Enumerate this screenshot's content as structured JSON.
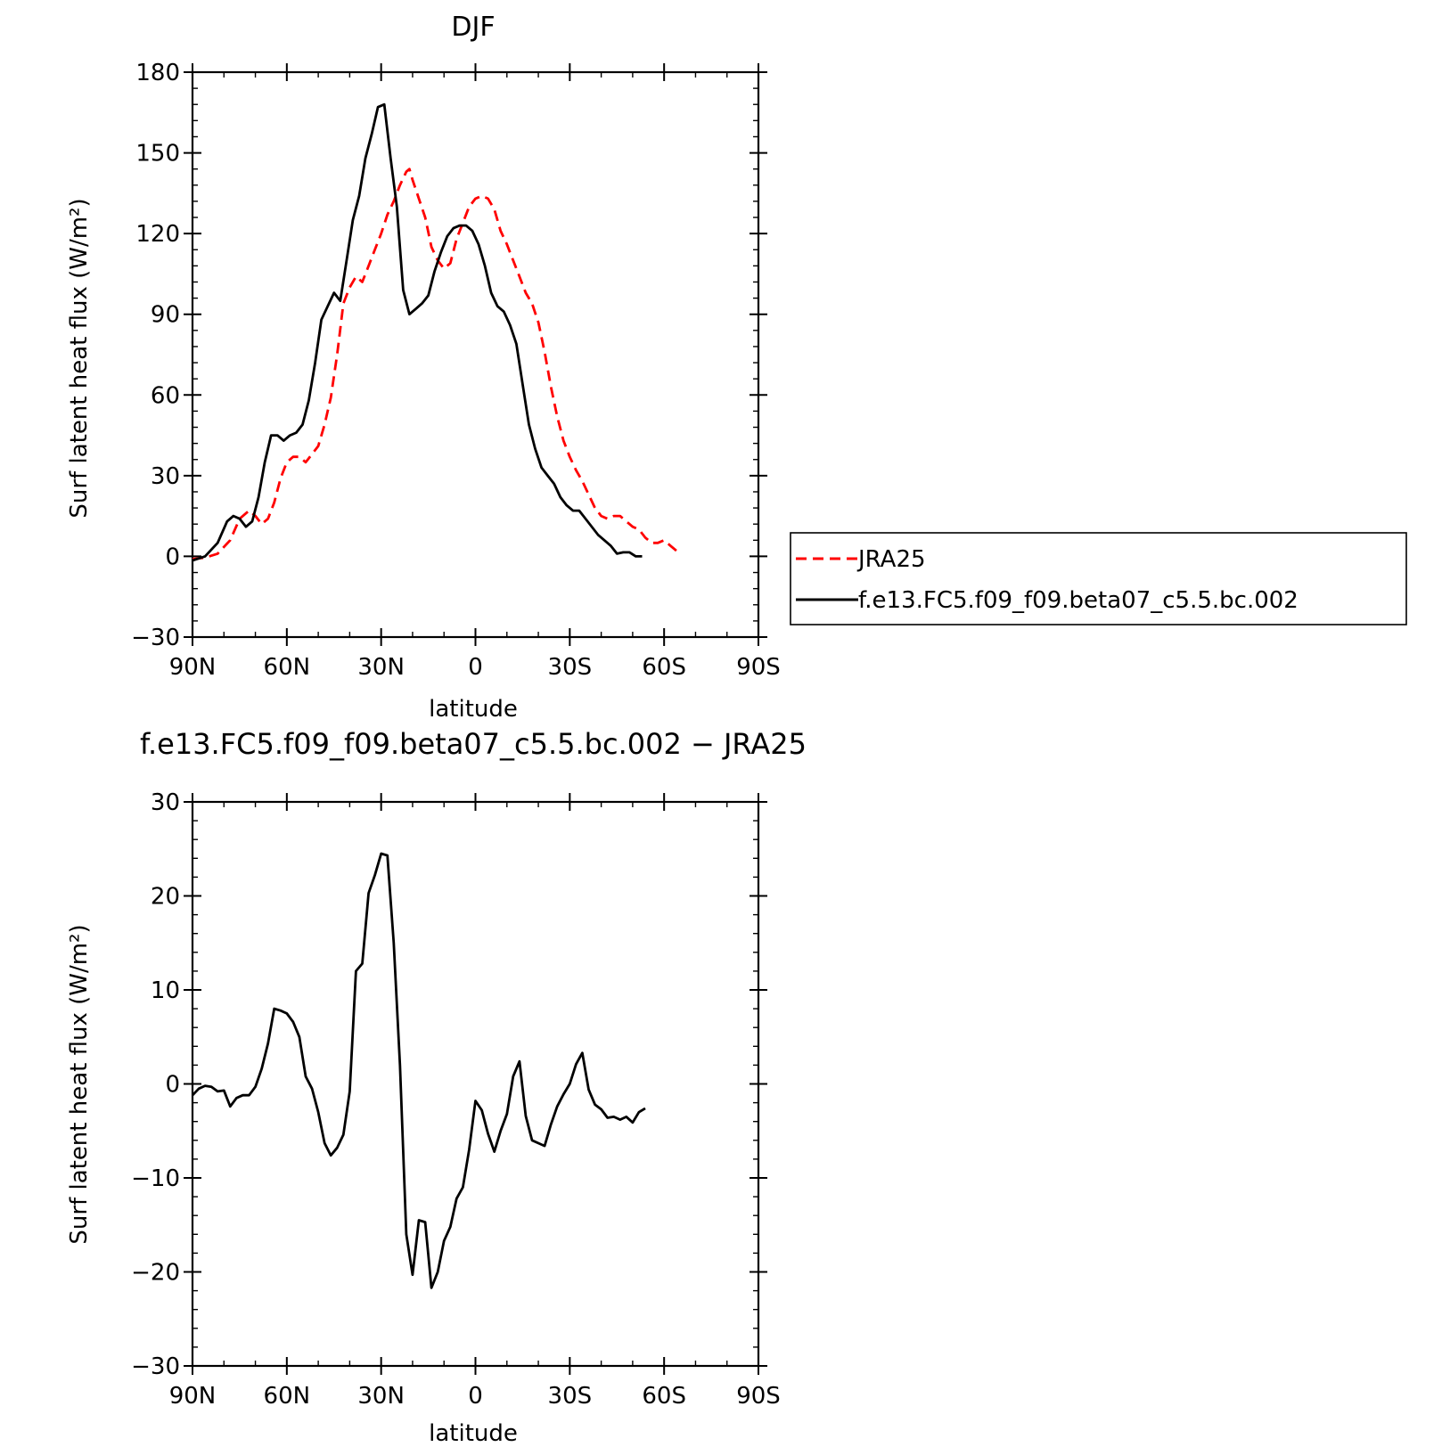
{
  "chart_data": [
    {
      "type": "line",
      "title": "DJF",
      "xlabel": "latitude",
      "ylabel": "Surf latent heat flux (W/m²)",
      "xlim": [
        90,
        -90
      ],
      "ylim": [
        -30,
        180
      ],
      "x_ticks": [
        {
          "value": 90,
          "label": "90N"
        },
        {
          "value": 60,
          "label": "60N"
        },
        {
          "value": 30,
          "label": "30N"
        },
        {
          "value": 0,
          "label": "0"
        },
        {
          "value": -30,
          "label": "30S"
        },
        {
          "value": -60,
          "label": "60S"
        },
        {
          "value": -90,
          "label": "90S"
        }
      ],
      "y_ticks": [
        -30,
        0,
        30,
        60,
        90,
        120,
        150,
        180
      ],
      "legend_position": "right, outside plot",
      "series": [
        {
          "name": "JRA25",
          "color": "#ff0000",
          "dash": "dashed",
          "points": [
            [
              90,
              -1
            ],
            [
              86,
              -0.5
            ],
            [
              82,
              1
            ],
            [
              78,
              6
            ],
            [
              75,
              14
            ],
            [
              72,
              17
            ],
            [
              70,
              15
            ],
            [
              68,
              12
            ],
            [
              66,
              14
            ],
            [
              64,
              20
            ],
            [
              62,
              29
            ],
            [
              60,
              35
            ],
            [
              58,
              37
            ],
            [
              56,
              37
            ],
            [
              54,
              35
            ],
            [
              52,
              38
            ],
            [
              50,
              41
            ],
            [
              48,
              49
            ],
            [
              46,
              59
            ],
            [
              44,
              75
            ],
            [
              42,
              94
            ],
            [
              40,
              100
            ],
            [
              38,
              104
            ],
            [
              36,
              102
            ],
            [
              34,
              108
            ],
            [
              32,
              114
            ],
            [
              30,
              120
            ],
            [
              28,
              127
            ],
            [
              26,
              132
            ],
            [
              24,
              138
            ],
            [
              22,
              143
            ],
            [
              21,
              144
            ],
            [
              20,
              140
            ],
            [
              18,
              133
            ],
            [
              16,
              126
            ],
            [
              14,
              115
            ],
            [
              12,
              110
            ],
            [
              10,
              107
            ],
            [
              8,
              109
            ],
            [
              6,
              118
            ],
            [
              4,
              124
            ],
            [
              2,
              130
            ],
            [
              0,
              133
            ],
            [
              -2,
              134
            ],
            [
              -4,
              133
            ],
            [
              -6,
              129
            ],
            [
              -8,
              121
            ],
            [
              -10,
              116
            ],
            [
              -12,
              110
            ],
            [
              -14,
              104
            ],
            [
              -16,
              98
            ],
            [
              -18,
              94
            ],
            [
              -20,
              87
            ],
            [
              -22,
              76
            ],
            [
              -24,
              63
            ],
            [
              -26,
              52
            ],
            [
              -28,
              43
            ],
            [
              -30,
              37
            ],
            [
              -32,
              32
            ],
            [
              -34,
              28
            ],
            [
              -36,
              23
            ],
            [
              -38,
              18
            ],
            [
              -40,
              15
            ],
            [
              -42,
              14
            ],
            [
              -44,
              15
            ],
            [
              -46,
              15
            ],
            [
              -48,
              13
            ],
            [
              -50,
              11
            ],
            [
              -52,
              10
            ],
            [
              -54,
              7
            ],
            [
              -56,
              5
            ],
            [
              -58,
              5
            ],
            [
              -60,
              6
            ],
            [
              -62,
              4
            ],
            [
              -64,
              2
            ]
          ]
        },
        {
          "name": "f.e13.FC5.f09_f09.beta07_c5.5.bc.002",
          "color": "#000000",
          "dash": "solid",
          "points": [
            [
              90,
              -1.5
            ],
            [
              86,
              0
            ],
            [
              82,
              5
            ],
            [
              79,
              13
            ],
            [
              77,
              15
            ],
            [
              75,
              14
            ],
            [
              73,
              11
            ],
            [
              71,
              13
            ],
            [
              69,
              22
            ],
            [
              67,
              35
            ],
            [
              65,
              45
            ],
            [
              63,
              45
            ],
            [
              61,
              43
            ],
            [
              59,
              45
            ],
            [
              57,
              46
            ],
            [
              55,
              49
            ],
            [
              53,
              58
            ],
            [
              51,
              72
            ],
            [
              49,
              88
            ],
            [
              47,
              93
            ],
            [
              45,
              98
            ],
            [
              43,
              95
            ],
            [
              41,
              110
            ],
            [
              39,
              125
            ],
            [
              37,
              134
            ],
            [
              35,
              148
            ],
            [
              33,
              157
            ],
            [
              31,
              167
            ],
            [
              29,
              168
            ],
            [
              27,
              148
            ],
            [
              25,
              130
            ],
            [
              23,
              99
            ],
            [
              21,
              90
            ],
            [
              19,
              92
            ],
            [
              17,
              94
            ],
            [
              15,
              97
            ],
            [
              13,
              106
            ],
            [
              11,
              113
            ],
            [
              9,
              119
            ],
            [
              7,
              122
            ],
            [
              5,
              123
            ],
            [
              3,
              123
            ],
            [
              1,
              121
            ],
            [
              -1,
              116
            ],
            [
              -3,
              108
            ],
            [
              -5,
              98
            ],
            [
              -7,
              93
            ],
            [
              -9,
              91
            ],
            [
              -11,
              86
            ],
            [
              -13,
              79
            ],
            [
              -15,
              64
            ],
            [
              -17,
              49
            ],
            [
              -19,
              40
            ],
            [
              -21,
              33
            ],
            [
              -23,
              30
            ],
            [
              -25,
              27
            ],
            [
              -27,
              22
            ],
            [
              -29,
              19
            ],
            [
              -31,
              17
            ],
            [
              -33,
              17
            ],
            [
              -35,
              14
            ],
            [
              -37,
              11
            ],
            [
              -39,
              8
            ],
            [
              -41,
              6
            ],
            [
              -43,
              4
            ],
            [
              -45,
              1
            ],
            [
              -47,
              1.5
            ],
            [
              -49,
              1.5
            ],
            [
              -51,
              0
            ],
            [
              -53,
              0
            ]
          ]
        }
      ]
    },
    {
      "type": "line",
      "title": "f.e13.FC5.f09_f09.beta07_c5.5.bc.002 − JRA25",
      "xlabel": "latitude",
      "ylabel": "Surf latent heat flux (W/m²)",
      "xlim": [
        90,
        -90
      ],
      "ylim": [
        -30,
        30
      ],
      "x_ticks": [
        {
          "value": 90,
          "label": "90N"
        },
        {
          "value": 60,
          "label": "60N"
        },
        {
          "value": 30,
          "label": "30N"
        },
        {
          "value": 0,
          "label": "0"
        },
        {
          "value": -30,
          "label": "30S"
        },
        {
          "value": -60,
          "label": "60S"
        },
        {
          "value": -90,
          "label": "90S"
        }
      ],
      "y_ticks": [
        -30,
        -20,
        -10,
        0,
        10,
        20,
        30
      ],
      "series": [
        {
          "color": "#000000",
          "dash": "solid",
          "points": [
            [
              90,
              -1.2
            ],
            [
              88,
              -0.5
            ],
            [
              86,
              -0.2
            ],
            [
              84,
              -0.3
            ],
            [
              82,
              -0.8
            ],
            [
              80,
              -0.7
            ],
            [
              78,
              -2.4
            ],
            [
              76,
              -1.5
            ],
            [
              74,
              -1.2
            ],
            [
              72,
              -1.2
            ],
            [
              70,
              -0.3
            ],
            [
              68,
              1.6
            ],
            [
              66,
              4.3
            ],
            [
              64,
              8
            ],
            [
              62,
              7.8
            ],
            [
              60,
              7.5
            ],
            [
              58,
              6.6
            ],
            [
              56,
              5
            ],
            [
              54,
              0.8
            ],
            [
              52,
              -0.5
            ],
            [
              50,
              -3
            ],
            [
              48,
              -6.3
            ],
            [
              46,
              -7.6
            ],
            [
              44,
              -6.8
            ],
            [
              42,
              -5.4
            ],
            [
              40,
              -0.8
            ],
            [
              38,
              12
            ],
            [
              36,
              12.8
            ],
            [
              34,
              20.3
            ],
            [
              32,
              22.2
            ],
            [
              30,
              24.5
            ],
            [
              28,
              24.3
            ],
            [
              26,
              15
            ],
            [
              24,
              2
            ],
            [
              22,
              -16
            ],
            [
              20,
              -20.3
            ],
            [
              18,
              -14.5
            ],
            [
              16,
              -14.7
            ],
            [
              14,
              -21.7
            ],
            [
              12,
              -20
            ],
            [
              10,
              -16.7
            ],
            [
              8,
              -15.2
            ],
            [
              6,
              -12.2
            ],
            [
              4,
              -11
            ],
            [
              2,
              -7
            ],
            [
              0,
              -1.8
            ],
            [
              -2,
              -2.8
            ],
            [
              -4,
              -5.3
            ],
            [
              -6,
              -7.2
            ],
            [
              -8,
              -5
            ],
            [
              -10,
              -3.2
            ],
            [
              -12,
              0.8
            ],
            [
              -14,
              2.4
            ],
            [
              -16,
              -3.4
            ],
            [
              -18,
              -6
            ],
            [
              -20,
              -6.3
            ],
            [
              -22,
              -6.6
            ],
            [
              -24,
              -4.3
            ],
            [
              -26,
              -2.4
            ],
            [
              -28,
              -1.1
            ],
            [
              -30,
              0
            ],
            [
              -32,
              2.1
            ],
            [
              -34,
              3.3
            ],
            [
              -36,
              -0.6
            ],
            [
              -38,
              -2.2
            ],
            [
              -40,
              -2.7
            ],
            [
              -42,
              -3.6
            ],
            [
              -44,
              -3.5
            ],
            [
              -46,
              -3.8
            ],
            [
              -48,
              -3.5
            ],
            [
              -50,
              -4.1
            ],
            [
              -52,
              -3
            ],
            [
              -54,
              -2.6
            ]
          ]
        }
      ]
    }
  ]
}
